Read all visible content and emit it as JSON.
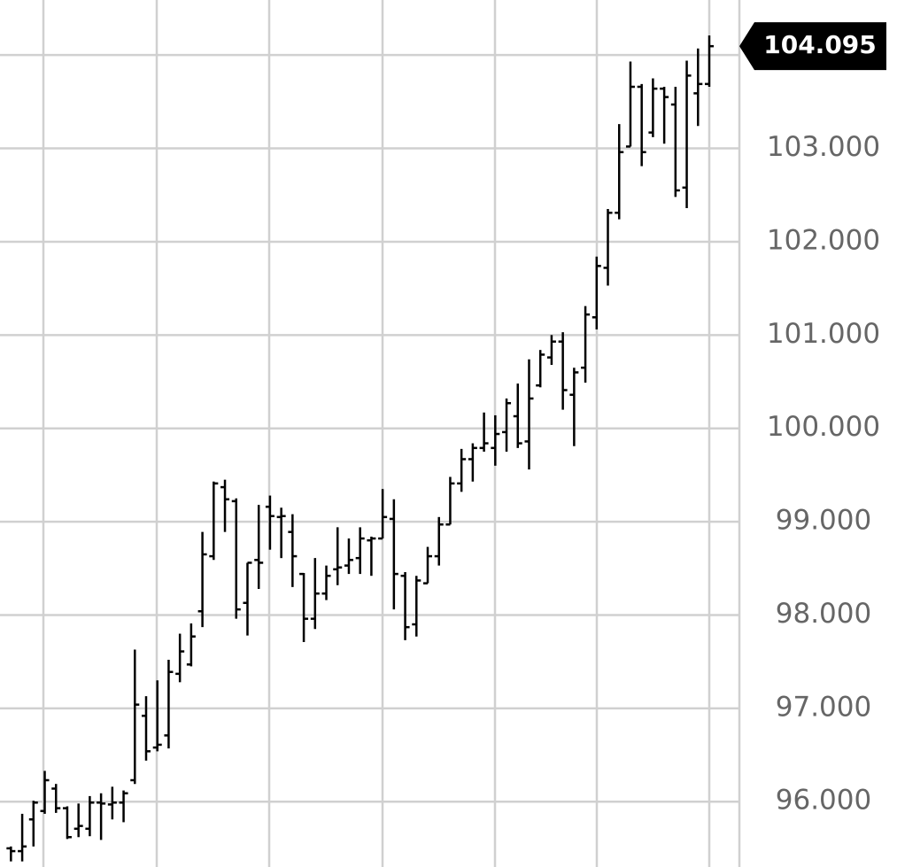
{
  "chart_data": {
    "type": "ohlc",
    "ylim": [
      95.3,
      104.59
    ],
    "yticks": [
      {
        "value": 96,
        "label": "96.000"
      },
      {
        "value": 97,
        "label": "97.000"
      },
      {
        "value": 98,
        "label": "98.000"
      },
      {
        "value": 99,
        "label": "99.000"
      },
      {
        "value": 100,
        "label": "100.000"
      },
      {
        "value": 101,
        "label": "101.000"
      },
      {
        "value": 102,
        "label": "102.000"
      },
      {
        "value": 103,
        "label": "103.000"
      },
      {
        "value": 104,
        "label": null
      }
    ],
    "grid": true,
    "color": "#000000",
    "last_price": 104.095,
    "series": [
      {
        "open": [
          95.5,
          95.47,
          95.81,
          95.9,
          96.14,
          95.93,
          95.71,
          95.71,
          95.99,
          95.97,
          95.99,
          96.23,
          96.92,
          96.58,
          96.71,
          97.37,
          97.47,
          98.04,
          98.63,
          99.37,
          99.22,
          98.13,
          98.59,
          99.16,
          99.05,
          98.89,
          98.44,
          97.96,
          98.23,
          98.49,
          98.53,
          98.61,
          98.8,
          98.82,
          99.03,
          98.42,
          97.9,
          98.34,
          98.63,
          98.97,
          99.41,
          99.67,
          99.79,
          99.79,
          99.96,
          100.13,
          99.86,
          100.46,
          100.76,
          100.93,
          100.36,
          100.65,
          101.19,
          101.72,
          102.31,
          103.02,
          103.66,
          103.17,
          103.64,
          103.47,
          102.58,
          103.59,
          103.69
        ],
        "high": [
          95.52,
          95.87,
          96.01,
          96.33,
          96.19,
          95.95,
          95.98,
          96.06,
          96.09,
          96.16,
          96.12,
          97.63,
          97.13,
          97.3,
          97.52,
          97.8,
          97.91,
          98.89,
          99.43,
          99.45,
          99.25,
          98.56,
          99.18,
          99.28,
          99.15,
          99.08,
          98.45,
          98.61,
          98.53,
          98.94,
          98.82,
          98.94,
          98.84,
          99.35,
          99.24,
          98.46,
          98.42,
          98.73,
          99.05,
          99.48,
          99.78,
          99.84,
          100.17,
          100.14,
          100.32,
          100.48,
          100.74,
          100.84,
          101.0,
          101.03,
          100.65,
          101.31,
          101.84,
          102.35,
          103.26,
          103.93,
          103.69,
          103.75,
          103.66,
          103.66,
          103.94,
          104.07,
          104.21
        ],
        "low": [
          95.36,
          95.36,
          95.52,
          95.87,
          95.88,
          95.6,
          95.62,
          95.63,
          95.59,
          95.81,
          95.78,
          96.19,
          96.44,
          96.54,
          96.57,
          97.28,
          97.45,
          97.87,
          98.59,
          98.89,
          97.96,
          97.78,
          98.28,
          98.7,
          98.61,
          98.3,
          97.71,
          97.85,
          98.16,
          98.32,
          98.44,
          98.44,
          98.42,
          98.82,
          98.06,
          97.73,
          97.77,
          98.34,
          98.53,
          98.97,
          99.32,
          99.43,
          99.75,
          99.6,
          99.75,
          99.79,
          99.56,
          100.44,
          100.68,
          100.2,
          99.81,
          100.49,
          101.06,
          101.53,
          102.24,
          103.02,
          102.81,
          103.12,
          103.05,
          102.48,
          102.36,
          103.24,
          103.66
        ],
        "close": [
          95.47,
          95.52,
          95.99,
          96.23,
          95.93,
          95.62,
          95.74,
          95.99,
          95.98,
          95.99,
          96.09,
          97.04,
          96.54,
          96.61,
          97.39,
          97.61,
          97.77,
          98.65,
          99.41,
          99.24,
          98.06,
          98.56,
          98.56,
          99.06,
          99.06,
          98.63,
          97.96,
          98.23,
          98.42,
          98.51,
          98.59,
          98.82,
          98.82,
          99.05,
          98.44,
          97.87,
          98.37,
          98.63,
          98.97,
          99.41,
          99.67,
          99.79,
          99.84,
          99.94,
          100.27,
          99.84,
          100.32,
          100.79,
          100.93,
          100.41,
          100.6,
          101.22,
          101.74,
          102.31,
          102.96,
          103.66,
          102.96,
          103.64,
          103.55,
          102.55,
          103.78,
          103.69,
          104.095
        ]
      }
    ]
  }
}
